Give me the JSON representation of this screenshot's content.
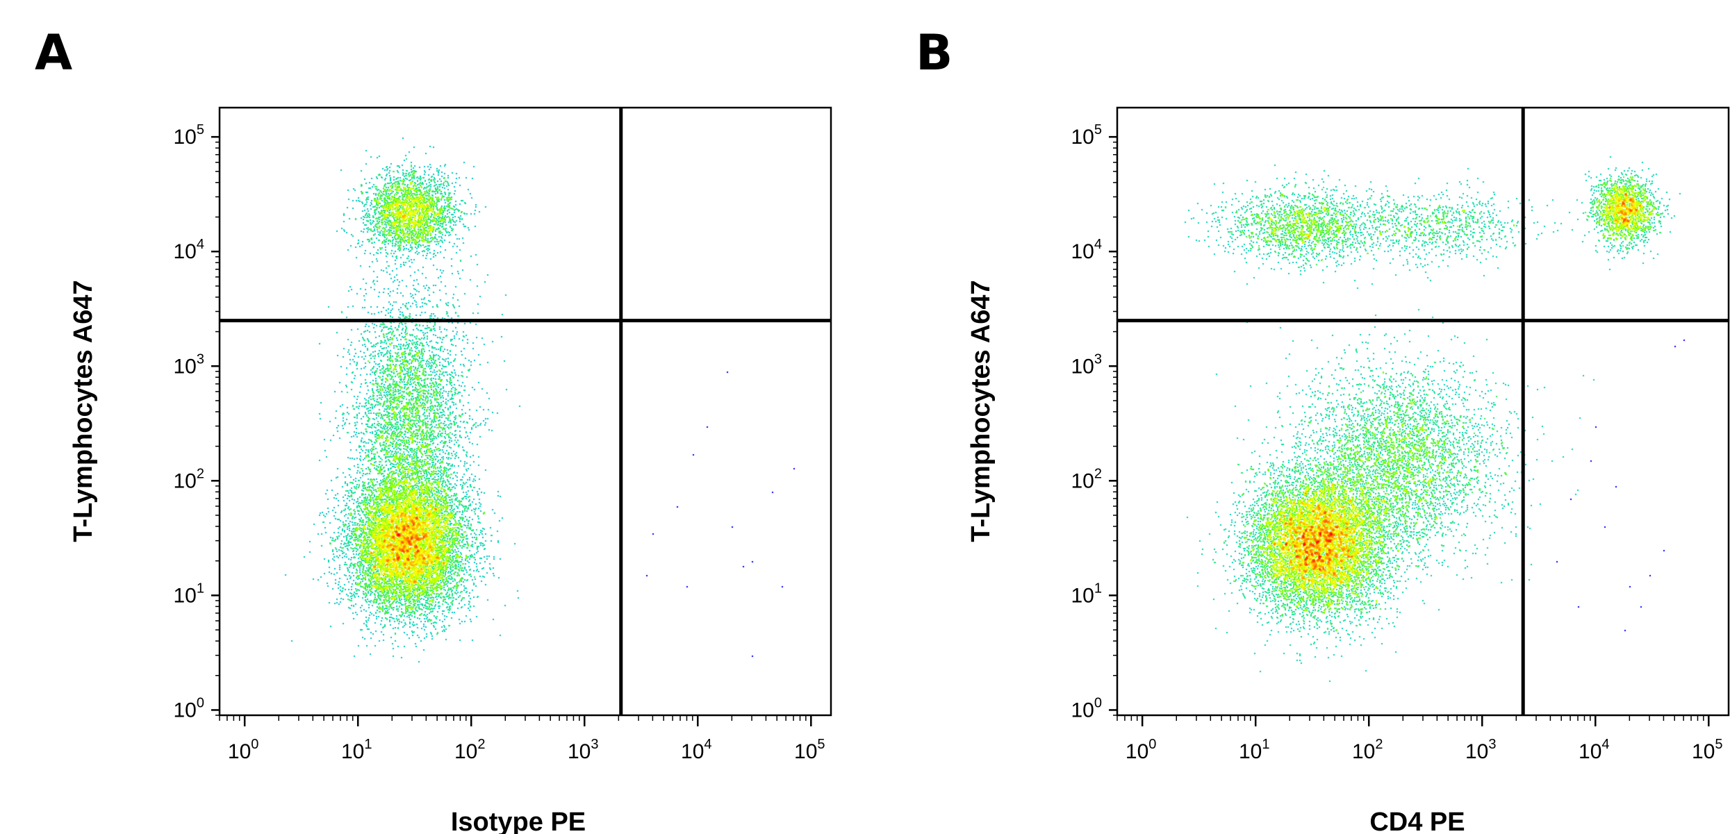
{
  "figure": {
    "panels": [
      {
        "letter": "A"
      },
      {
        "letter": "B"
      }
    ]
  },
  "chart_data": [
    {
      "type": "scatter",
      "subtype": "flow-cytometry density dot plot with quadrant gates",
      "panel": "A",
      "xlabel": "Isotype PE",
      "ylabel": "T-Lymphocytes A647",
      "xscale": "log",
      "yscale": "log",
      "xlim": [
        0.6,
        150000
      ],
      "ylim": [
        0.9,
        180000
      ],
      "xticks": [
        "10^0",
        "10^1",
        "10^2",
        "10^3",
        "10^4",
        "10^5"
      ],
      "yticks": [
        "10^0",
        "10^1",
        "10^2",
        "10^3",
        "10^4",
        "10^5"
      ],
      "gate": {
        "x": 2100,
        "y": 2500
      },
      "color_scale": [
        "#0000ff",
        "#00a0ff",
        "#00e0a0",
        "#80ff00",
        "#ffff00",
        "#ff8000",
        "#ff0000"
      ],
      "populations": [
        {
          "center": [
            27,
            28
          ],
          "spread": [
            0.26,
            0.3
          ],
          "count": 9000,
          "peak_density": "high"
        },
        {
          "center": [
            28,
            350
          ],
          "spread": [
            0.26,
            0.55
          ],
          "count": 4200,
          "peak_density": "medium"
        },
        {
          "center": [
            28,
            22000
          ],
          "spread": [
            0.2,
            0.18
          ],
          "count": 2600,
          "peak_density": "medium"
        }
      ],
      "sparse_events": [
        [
          9000,
          170
        ],
        [
          6500,
          60
        ],
        [
          20000,
          40
        ],
        [
          30000,
          20
        ],
        [
          45000,
          80
        ],
        [
          70000,
          130
        ],
        [
          12000,
          300
        ],
        [
          4000,
          35
        ],
        [
          18000,
          900
        ],
        [
          55000,
          12
        ],
        [
          25000,
          18
        ],
        [
          8000,
          12
        ],
        [
          3500,
          15
        ],
        [
          30000,
          3
        ]
      ]
    },
    {
      "type": "scatter",
      "subtype": "flow-cytometry density dot plot with quadrant gates",
      "panel": "B",
      "xlabel": "CD4 PE",
      "ylabel": "T-Lymphocytes A647",
      "xscale": "log",
      "yscale": "log",
      "xlim": [
        0.6,
        150000
      ],
      "ylim": [
        0.9,
        180000
      ],
      "xticks": [
        "10^0",
        "10^1",
        "10^2",
        "10^3",
        "10^4",
        "10^5"
      ],
      "yticks": [
        "10^0",
        "10^1",
        "10^2",
        "10^3",
        "10^4",
        "10^5"
      ],
      "gate": {
        "x": 2300,
        "y": 2500
      },
      "color_scale": [
        "#0000ff",
        "#00a0ff",
        "#00e0a0",
        "#80ff00",
        "#ffff00",
        "#ff8000",
        "#ff0000"
      ],
      "populations": [
        {
          "center": [
            35,
            28
          ],
          "spread": [
            0.3,
            0.3
          ],
          "count": 9000,
          "peak_density": "high"
        },
        {
          "center": [
            180,
            160
          ],
          "spread": [
            0.45,
            0.4
          ],
          "count": 4000,
          "peak_density": "medium"
        },
        {
          "center": [
            25,
            17000
          ],
          "spread": [
            0.35,
            0.15
          ],
          "count": 1700,
          "peak_density": "low"
        },
        {
          "center": [
            400,
            17000
          ],
          "spread": [
            0.4,
            0.15
          ],
          "count": 800,
          "peak_density": "low"
        },
        {
          "center": [
            18000,
            23000
          ],
          "spread": [
            0.14,
            0.14
          ],
          "count": 1800,
          "peak_density": "medium"
        }
      ],
      "sparse_events": [
        [
          6000,
          70
        ],
        [
          9000,
          150
        ],
        [
          12000,
          40
        ],
        [
          15000,
          90
        ],
        [
          4500,
          20
        ],
        [
          20000,
          12
        ],
        [
          30000,
          15
        ],
        [
          40000,
          25
        ],
        [
          10000,
          300
        ],
        [
          25000,
          8
        ],
        [
          18000,
          5
        ],
        [
          50000,
          1500
        ],
        [
          60000,
          1700
        ],
        [
          7000,
          8
        ]
      ]
    }
  ]
}
